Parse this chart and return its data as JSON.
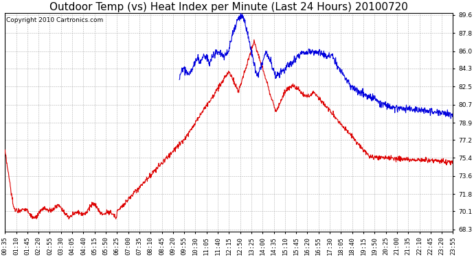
{
  "title": "Outdoor Temp (vs) Heat Index per Minute (Last 24 Hours) 20100720",
  "copyright": "Copyright 2010 Cartronics.com",
  "y_min": 68.3,
  "y_max": 89.6,
  "y_ticks": [
    68.3,
    70.1,
    71.8,
    73.6,
    75.4,
    77.2,
    78.9,
    80.7,
    82.5,
    84.3,
    86.0,
    87.8,
    89.6
  ],
  "x_labels": [
    "00:35",
    "01:10",
    "01:45",
    "02:20",
    "02:55",
    "03:30",
    "04:05",
    "04:40",
    "05:15",
    "05:50",
    "06:25",
    "07:00",
    "07:35",
    "08:10",
    "08:45",
    "09:20",
    "09:55",
    "10:30",
    "11:05",
    "11:40",
    "12:15",
    "12:50",
    "13:25",
    "14:00",
    "14:35",
    "15:10",
    "15:45",
    "16:20",
    "16:55",
    "17:30",
    "18:05",
    "18:40",
    "19:15",
    "19:50",
    "20:25",
    "21:00",
    "21:35",
    "22:10",
    "22:45",
    "23:20",
    "23:55"
  ],
  "background_color": "#ffffff",
  "grid_color": "#b0b0b0",
  "line_red_color": "#dd0000",
  "line_blue_color": "#0000dd",
  "title_fontsize": 11,
  "copyright_fontsize": 6.5,
  "tick_fontsize": 6.5,
  "figure_bg": "#ffffff",
  "figwidth": 6.9,
  "figheight": 3.75,
  "dpi": 100
}
